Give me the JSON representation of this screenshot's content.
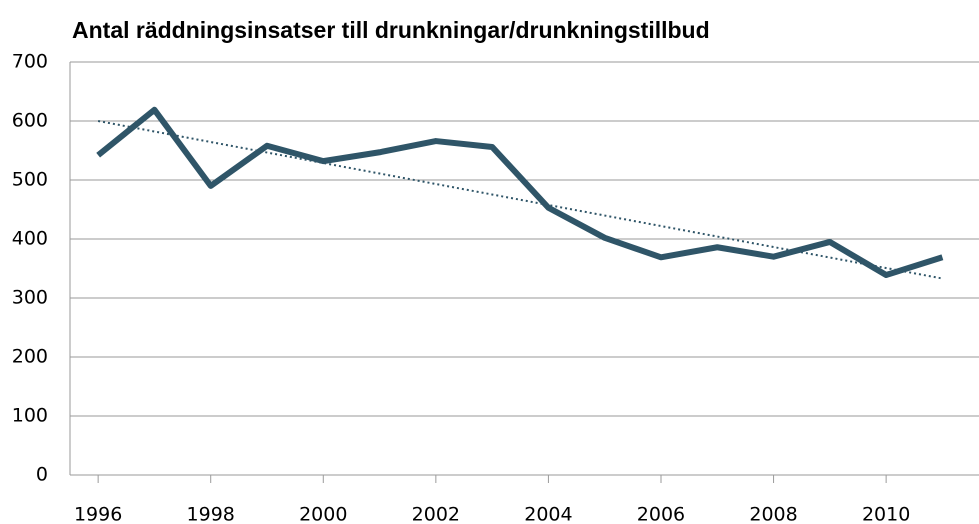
{
  "chart_data": {
    "type": "line",
    "title": "Antal räddningsinsatser till drunkningar/drunkningstillbud",
    "x": [
      1996,
      1997,
      1998,
      1999,
      2000,
      2001,
      2002,
      2003,
      2004,
      2005,
      2006,
      2007,
      2008,
      2009,
      2010,
      2011
    ],
    "series": [
      {
        "color": "#2f5568",
        "values": [
          542,
          619,
          490,
          558,
          532,
          547,
          566,
          556,
          453,
          402,
          369,
          386,
          370,
          395,
          339,
          369
        ]
      }
    ],
    "trend": {
      "start": 600,
      "end": 333,
      "color": "#2f5568",
      "style": "dotted"
    },
    "xlim": [
      1995.5,
      2011.65
    ],
    "xticks": [
      1996,
      1998,
      2000,
      2002,
      2004,
      2006,
      2008,
      2010
    ],
    "ylim": [
      0,
      700
    ],
    "yticks": [
      0,
      100,
      200,
      300,
      400,
      500,
      600,
      700
    ],
    "grid": true
  }
}
